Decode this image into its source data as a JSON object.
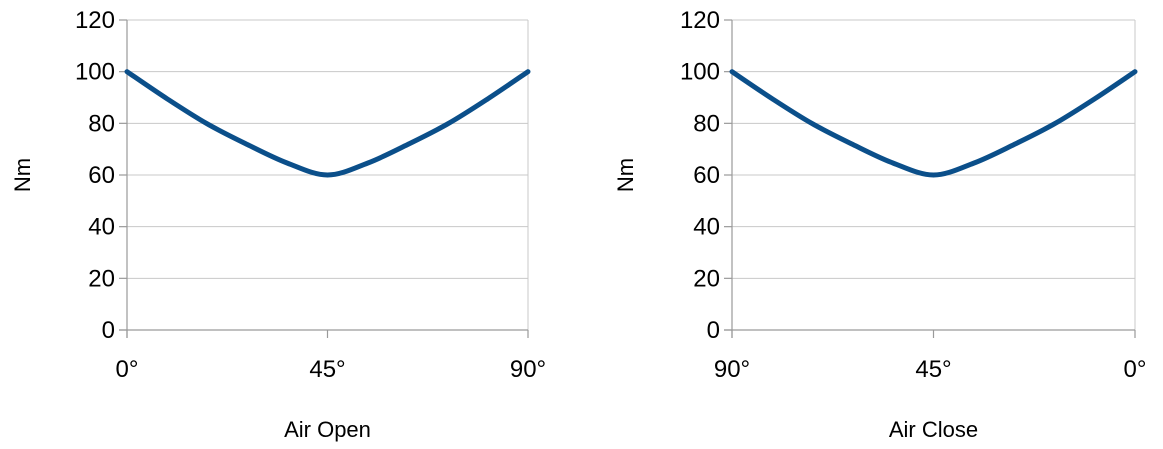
{
  "colors": {
    "series": "#0b4f8a"
  },
  "chart_data": [
    {
      "type": "line",
      "x": [
        0,
        9,
        18,
        27,
        36,
        45,
        54,
        63,
        72,
        81,
        90
      ],
      "x_tick_values": [
        0,
        45,
        90
      ],
      "x_tick_labels": [
        "0°",
        "45°",
        "90°"
      ],
      "xlim": [
        0,
        90
      ],
      "x_reversed": false,
      "series": [
        {
          "values": [
            100,
            89.5,
            79.8,
            71.8,
            64.6,
            60,
            64.6,
            71.8,
            79.8,
            89.5,
            100
          ]
        }
      ],
      "ylim": [
        0,
        120
      ],
      "y_ticks": [
        0,
        20,
        40,
        60,
        80,
        100,
        120
      ],
      "xlabel": "Air Open",
      "ylabel": "Nm",
      "grid": true,
      "legend": "none"
    },
    {
      "type": "line",
      "x": [
        90,
        81,
        72,
        63,
        54,
        45,
        36,
        27,
        18,
        9,
        0
      ],
      "x_tick_values": [
        90,
        45,
        0
      ],
      "x_tick_labels": [
        "90°",
        "45°",
        "0°"
      ],
      "xlim": [
        90,
        0
      ],
      "x_reversed": true,
      "series": [
        {
          "values": [
            100,
            89.5,
            79.8,
            71.8,
            64.6,
            60,
            64.6,
            71.8,
            79.8,
            89.5,
            100
          ]
        }
      ],
      "ylim": [
        0,
        120
      ],
      "y_ticks": [
        0,
        20,
        40,
        60,
        80,
        100,
        120
      ],
      "xlabel": "Air Close",
      "ylabel": "Nm",
      "grid": true,
      "legend": "none"
    }
  ]
}
